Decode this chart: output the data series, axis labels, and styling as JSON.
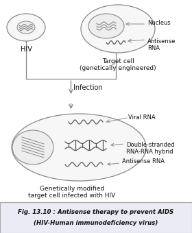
{
  "title_line1": "Fig. 13.10 : Antisense therapy to prevent AIDS",
  "title_line2": "(HIV-Human immunodeficiency virus)",
  "background_color": "#ffffff",
  "caption_bg": "#ebebf5",
  "fig_width": 2.8,
  "fig_height": 3.4,
  "dpi": 100,
  "labels": {
    "HIV": "HIV",
    "target_cell": "Target cell\n(genetically engineered)",
    "nucleus": "Nucleus",
    "antisense_rna_top": "Antisense\nRNA",
    "infection": "Infection",
    "viral_rna": "Viral RNA",
    "double_stranded": "Double-stranded\nRNA-RNA hybrid",
    "antisense_rna_bottom": "Antisense RNA",
    "genetically_modified": "Genetically modified\ntarget cell infected with HIV"
  },
  "line_color": "#888888",
  "text_color": "#111111"
}
